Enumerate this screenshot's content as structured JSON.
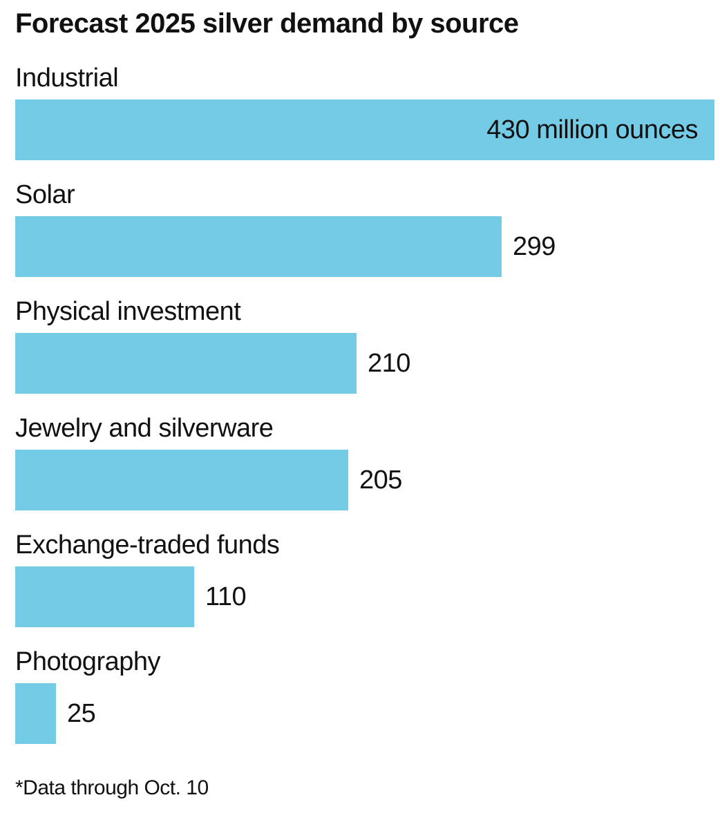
{
  "title": "Forecast 2025 silver demand by source",
  "note": "*Data through Oct. 10",
  "chart_data": {
    "type": "bar",
    "orientation": "horizontal",
    "title": "Forecast 2025 silver demand by source",
    "categories": [
      "Industrial",
      "Solar",
      "Physical investment",
      "Jewelry and silverware",
      "Exchange-traded funds",
      "Photography"
    ],
    "values": [
      430,
      299,
      210,
      205,
      110,
      25
    ],
    "value_labels": [
      "430 million ounces",
      "299",
      "210",
      "205",
      "110",
      "25"
    ],
    "unit": "million ounces",
    "bar_color": "#74cbe6",
    "grid": false,
    "xlim": [
      0,
      430
    ]
  }
}
